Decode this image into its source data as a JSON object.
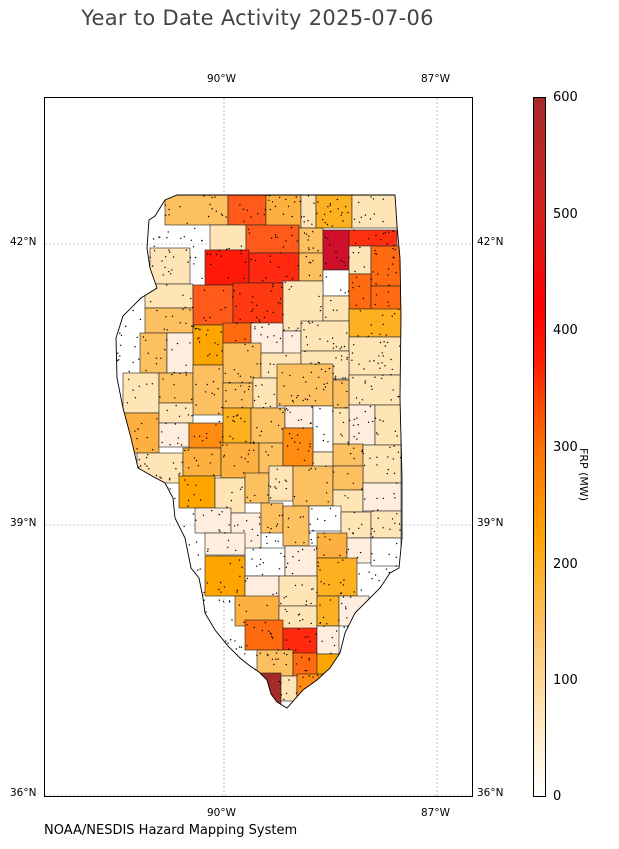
{
  "title": "Year to Date Activity 2025-07-06",
  "credit": "NOAA/NESDIS Hazard Mapping System",
  "map": {
    "lon_labels": [
      "90°W",
      "87°W"
    ],
    "lat_labels": [
      "42°N",
      "39°N",
      "36°N"
    ],
    "gridlines": true
  },
  "colorbar": {
    "label": "FRP (MW)",
    "range": [
      0,
      600
    ],
    "ticks": [
      "0",
      "100",
      "200",
      "300",
      "400",
      "500",
      "600"
    ],
    "colors": [
      "#ffffff",
      "#ffe4b5",
      "#fdc060",
      "#ffa500",
      "#ff7000",
      "#ff2000",
      "#a52a2a"
    ]
  },
  "legend_colors": {
    "state_outline": "#000000",
    "fire_points": "#000000",
    "gridline": "#999999"
  }
}
